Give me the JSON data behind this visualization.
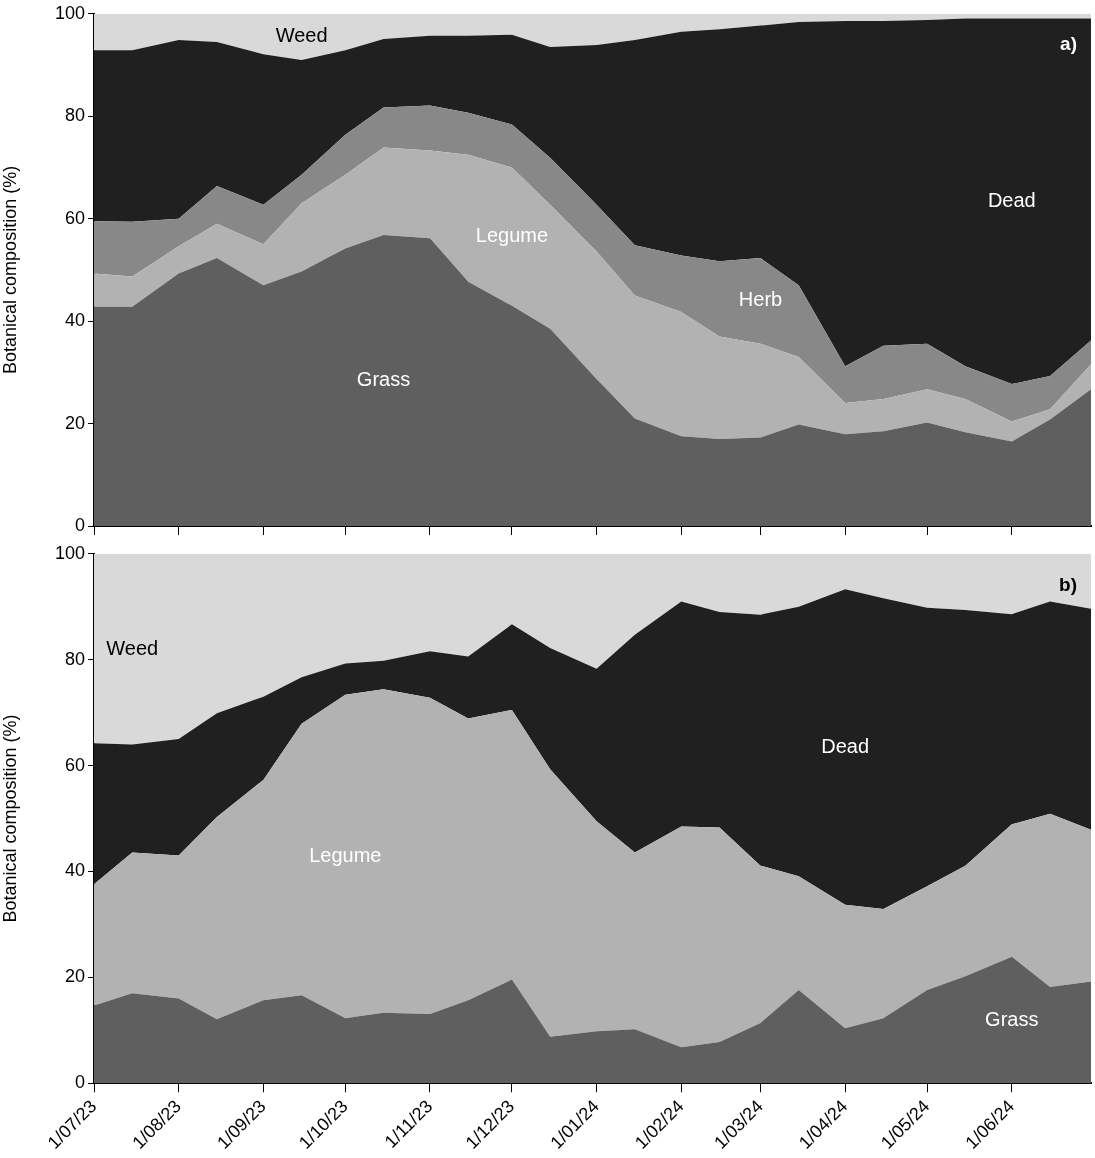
{
  "chart_data": [
    {
      "type": "area",
      "ylabel": "Botanical composition (%)",
      "stacked": true,
      "tick_labels": "y",
      "annotations": [
        "a)"
      ],
      "x": [
        "2023-07-01",
        "2023-07-15",
        "2023-08-01",
        "2023-08-15",
        "2023-09-01",
        "2023-09-15",
        "2023-10-01",
        "2023-10-15",
        "2023-11-01",
        "2023-11-15",
        "2023-12-01",
        "2023-12-15",
        "2024-01-01",
        "2024-01-15",
        "2024-02-01",
        "2024-02-15",
        "2024-03-01",
        "2024-03-15",
        "2024-04-01",
        "2024-04-15",
        "2024-05-01",
        "2024-05-15",
        "2024-06-01",
        "2024-06-15",
        "2024-06-30"
      ],
      "xlim": [
        "2023-07-01",
        "2024-06-30"
      ],
      "xticks": [
        {
          "value": "2023-07-01",
          "label": null
        },
        {
          "value": "2023-08-01",
          "label": null
        },
        {
          "value": "2023-09-01",
          "label": null
        },
        {
          "value": "2023-10-01",
          "label": null
        },
        {
          "value": "2023-11-01",
          "label": null
        },
        {
          "value": "2023-12-01",
          "label": null
        },
        {
          "value": "2024-01-01",
          "label": null
        },
        {
          "value": "2024-02-01",
          "label": null
        },
        {
          "value": "2024-03-01",
          "label": null
        },
        {
          "value": "2024-04-01",
          "label": null
        },
        {
          "value": "2024-05-01",
          "label": null
        },
        {
          "value": "2024-06-01",
          "label": null
        }
      ],
      "ylim": [
        0,
        100
      ],
      "yticks": [
        0,
        20,
        40,
        60,
        80,
        100
      ],
      "series": [
        {
          "name": "Grass",
          "color": "#5f5f5f",
          "values": [
            42.8,
            42.8,
            49.3,
            52.3,
            47,
            49.7,
            54.2,
            56.8,
            56.2,
            47.7,
            43,
            38.5,
            28.7,
            21,
            17.5,
            17,
            17.3,
            19.8,
            17.9,
            18.5,
            20.2,
            18.3,
            16.5,
            20.8,
            26.7
          ]
        },
        {
          "name": "Legume",
          "color": "#b2b2b2",
          "values": [
            6.5,
            5.9,
            5.3,
            6.7,
            8,
            13.3,
            14.4,
            17.1,
            17.1,
            24.8,
            27,
            24.2,
            24.9,
            24,
            24.3,
            20,
            18.3,
            13.2,
            6.1,
            6.3,
            6.5,
            6.5,
            3.9,
            2,
            4.9
          ]
        },
        {
          "name": "Herb",
          "color": "#888888",
          "values": [
            10.2,
            10.7,
            5.4,
            7.4,
            7.7,
            5.6,
            7.8,
            7.8,
            8.8,
            8.2,
            8.4,
            9.2,
            9.1,
            9.8,
            11,
            14.7,
            16.7,
            14,
            7.2,
            10.4,
            8.9,
            6.4,
            7.3,
            6.5,
            4.6
          ]
        },
        {
          "name": "Dead",
          "color": "#202020",
          "values": [
            33.4,
            33.5,
            34.9,
            28.1,
            29.4,
            22.4,
            16.5,
            13.4,
            13.6,
            15,
            17.5,
            21.6,
            31.2,
            40.1,
            43.7,
            45.3,
            45.4,
            51.4,
            67.4,
            63.4,
            63.2,
            67.9,
            71.4,
            69.8,
            62.9
          ]
        },
        {
          "name": "Weed",
          "color": "#d9d9d9",
          "values": [
            7.1,
            7.1,
            5.1,
            5.5,
            7.9,
            9,
            7.1,
            4.9,
            4.3,
            4.3,
            4.1,
            6.5,
            6.1,
            5.1,
            3.5,
            3,
            2.3,
            1.6,
            1.4,
            1.4,
            1.2,
            0.9,
            0.9,
            0.9,
            0.9
          ]
        }
      ]
    },
    {
      "type": "area",
      "ylabel": "Botanical composition (%)",
      "stacked": true,
      "annotations": [
        "b)"
      ],
      "x": [
        "2023-07-01",
        "2023-07-15",
        "2023-08-01",
        "2023-08-15",
        "2023-09-01",
        "2023-09-15",
        "2023-10-01",
        "2023-10-15",
        "2023-11-01",
        "2023-11-15",
        "2023-12-01",
        "2023-12-15",
        "2024-01-01",
        "2024-01-15",
        "2024-02-01",
        "2024-02-15",
        "2024-03-01",
        "2024-03-15",
        "2024-04-01",
        "2024-04-15",
        "2024-05-01",
        "2024-05-15",
        "2024-06-01",
        "2024-06-15",
        "2024-06-30"
      ],
      "xlim": [
        "2023-07-01",
        "2024-06-30"
      ],
      "xticks": [
        {
          "value": "2023-07-01",
          "label": "1/07/23"
        },
        {
          "value": "2023-08-01",
          "label": "1/08/23"
        },
        {
          "value": "2023-09-01",
          "label": "1/09/23"
        },
        {
          "value": "2023-10-01",
          "label": "1/10/23"
        },
        {
          "value": "2023-11-01",
          "label": "1/11/23"
        },
        {
          "value": "2023-12-01",
          "label": "1/12/23"
        },
        {
          "value": "2024-01-01",
          "label": "1/01/24"
        },
        {
          "value": "2024-02-01",
          "label": "1/02/24"
        },
        {
          "value": "2024-03-01",
          "label": "1/03/24"
        },
        {
          "value": "2024-04-01",
          "label": "1/04/24"
        },
        {
          "value": "2024-05-01",
          "label": "1/05/24"
        },
        {
          "value": "2024-06-01",
          "label": "1/06/24"
        }
      ],
      "ylim": [
        0,
        100
      ],
      "yticks": [
        0,
        20,
        40,
        60,
        80,
        100
      ],
      "series": [
        {
          "name": "Grass",
          "color": "#5f5f5f",
          "values": [
            14.7,
            17,
            16,
            12.1,
            15.7,
            16.6,
            12.3,
            13.3,
            13.1,
            15.7,
            19.6,
            8.8,
            9.8,
            10.2,
            6.8,
            7.8,
            11.4,
            17.6,
            10.4,
            12.3,
            17.6,
            20.2,
            23.9,
            18.2,
            19.2
          ]
        },
        {
          "name": "Legume",
          "color": "#b2b2b2",
          "values": [
            22.9,
            26.6,
            27,
            38.2,
            41.6,
            51.3,
            61.1,
            61.1,
            59.7,
            53.2,
            50.9,
            50.5,
            39.7,
            33.4,
            41.7,
            40.5,
            29.7,
            21.5,
            23.3,
            20.6,
            19.6,
            20.9,
            25,
            32.7,
            28.7
          ]
        },
        {
          "name": "Dead",
          "color": "#202020",
          "values": [
            26.6,
            20.4,
            22,
            19.6,
            15.7,
            8.8,
            5.9,
            5.4,
            8.8,
            11.7,
            16.2,
            22.9,
            28.8,
            41.1,
            42.5,
            40.7,
            47.4,
            50.9,
            59.6,
            58.7,
            52.6,
            48.3,
            39.7,
            40.1,
            41.7
          ]
        },
        {
          "name": "Weed",
          "color": "#d9d9d9",
          "values": [
            35.8,
            36,
            35,
            30.1,
            27,
            23.3,
            20.7,
            20.2,
            18.4,
            19.4,
            13.3,
            17.8,
            21.7,
            15.3,
            9,
            11,
            11.5,
            10,
            6.7,
            8.4,
            10.2,
            10.6,
            11.4,
            9,
            10.4
          ]
        }
      ]
    }
  ]
}
